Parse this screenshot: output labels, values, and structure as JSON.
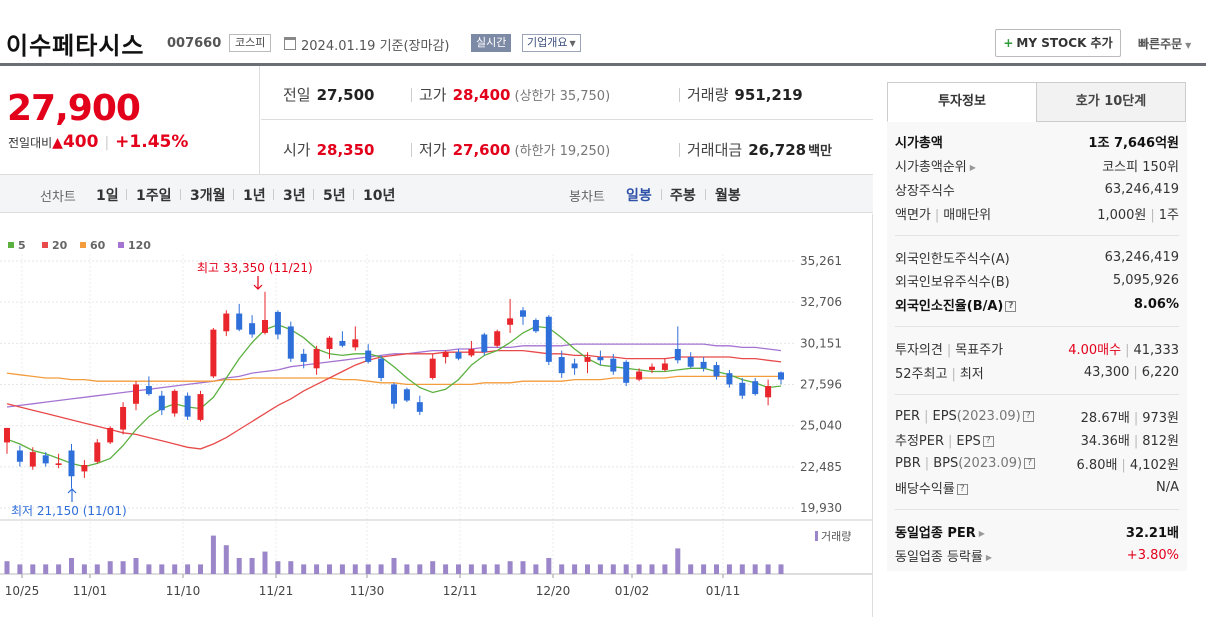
{
  "header": {
    "stock_name": "이수페타시스",
    "stock_code": "007660",
    "market": "코스피",
    "date_text": "2024.01.19 기준(장마감)",
    "realtime_label": "실시간",
    "company_info_label": "기업개요",
    "mystock_label": "MY STOCK 추가",
    "quick_order_label": "빠른주문"
  },
  "price": {
    "current": "27,900",
    "change_label": "전일대비",
    "change_amount": "400",
    "change_pct": "+1.45%",
    "prev_close_label": "전일",
    "prev_close": "27,500",
    "high_label": "고가",
    "high": "28,400",
    "upper_limit_text": "(상한가 35,750)",
    "volume_label": "거래량",
    "volume": "951,219",
    "open_label": "시가",
    "open": "28,350",
    "low_label": "저가",
    "low": "27,600",
    "lower_limit_text": "(하한가 19,250)",
    "amount_label": "거래대금",
    "amount": "26,728",
    "amount_unit": "백만"
  },
  "toolbar": {
    "line_chart_label": "선차트",
    "line_periods": [
      "1일",
      "1주일",
      "3개월",
      "1년",
      "3년",
      "5년",
      "10년"
    ],
    "candle_chart_label": "봉차트",
    "candle_periods": [
      "일봉",
      "주봉",
      "월봉"
    ],
    "active_candle": "일봉"
  },
  "chart_data": {
    "type": "candlestick",
    "legend": [
      {
        "name": "5",
        "color": "#5cb040"
      },
      {
        "name": "20",
        "color": "#e84a4a"
      },
      {
        "name": "60",
        "color": "#f39c3c"
      },
      {
        "name": "120",
        "color": "#a574d2"
      }
    ],
    "y_ticks": [
      "35,261",
      "32,706",
      "30,151",
      "27,596",
      "25,040",
      "22,485",
      "19,930"
    ],
    "ylim": [
      19930,
      35261
    ],
    "x_ticks": [
      "10/25",
      "11/01",
      "11/10",
      "11/21",
      "11/30",
      "12/11",
      "12/20",
      "01/02",
      "01/11"
    ],
    "max_annotation": "최고 33,350 (11/21)",
    "min_annotation": "최저 21,150 (11/01)",
    "volume_label": "거래량",
    "up_color": "#e8262b",
    "down_color": "#2f6fd9",
    "volume_color": "#9b86c9",
    "candles": [
      {
        "o": 24000,
        "h": 24900,
        "l": 23300,
        "c": 24900
      },
      {
        "o": 23500,
        "h": 23800,
        "l": 22500,
        "c": 22800
      },
      {
        "o": 22500,
        "h": 23700,
        "l": 22300,
        "c": 23400
      },
      {
        "o": 23200,
        "h": 23400,
        "l": 22500,
        "c": 22700
      },
      {
        "o": 22600,
        "h": 23300,
        "l": 22400,
        "c": 22700
      },
      {
        "o": 23500,
        "h": 23900,
        "l": 21150,
        "c": 21900
      },
      {
        "o": 22200,
        "h": 22900,
        "l": 21800,
        "c": 22600
      },
      {
        "o": 22800,
        "h": 24200,
        "l": 22700,
        "c": 24000
      },
      {
        "o": 24000,
        "h": 25000,
        "l": 23900,
        "c": 24900
      },
      {
        "o": 24800,
        "h": 26500,
        "l": 24500,
        "c": 26200
      },
      {
        "o": 26400,
        "h": 27800,
        "l": 26000,
        "c": 27600
      },
      {
        "o": 27500,
        "h": 28100,
        "l": 26900,
        "c": 27000
      },
      {
        "o": 26900,
        "h": 27200,
        "l": 25700,
        "c": 26000
      },
      {
        "o": 25800,
        "h": 27300,
        "l": 25600,
        "c": 27200
      },
      {
        "o": 26900,
        "h": 27100,
        "l": 25400,
        "c": 25600
      },
      {
        "o": 25400,
        "h": 27200,
        "l": 25300,
        "c": 27000
      },
      {
        "o": 28100,
        "h": 31100,
        "l": 28000,
        "c": 31000
      },
      {
        "o": 30900,
        "h": 32200,
        "l": 30600,
        "c": 32000
      },
      {
        "o": 32000,
        "h": 32600,
        "l": 30900,
        "c": 31000
      },
      {
        "o": 31400,
        "h": 31900,
        "l": 30500,
        "c": 30700
      },
      {
        "o": 30800,
        "h": 33350,
        "l": 30700,
        "c": 31600
      },
      {
        "o": 32100,
        "h": 32200,
        "l": 30400,
        "c": 30700
      },
      {
        "o": 31200,
        "h": 31500,
        "l": 29000,
        "c": 29200
      },
      {
        "o": 29500,
        "h": 29800,
        "l": 28600,
        "c": 29000
      },
      {
        "o": 28600,
        "h": 30000,
        "l": 28200,
        "c": 29800
      },
      {
        "o": 29800,
        "h": 30600,
        "l": 29200,
        "c": 30500
      },
      {
        "o": 30300,
        "h": 30900,
        "l": 29900,
        "c": 30000
      },
      {
        "o": 29900,
        "h": 31200,
        "l": 29700,
        "c": 30400
      },
      {
        "o": 29700,
        "h": 30100,
        "l": 28900,
        "c": 29000
      },
      {
        "o": 29200,
        "h": 29400,
        "l": 27800,
        "c": 28000
      },
      {
        "o": 27600,
        "h": 27700,
        "l": 26100,
        "c": 26400
      },
      {
        "o": 27300,
        "h": 27400,
        "l": 26500,
        "c": 26600
      },
      {
        "o": 26500,
        "h": 26900,
        "l": 25700,
        "c": 25900
      },
      {
        "o": 28000,
        "h": 29500,
        "l": 27900,
        "c": 29200
      },
      {
        "o": 29300,
        "h": 29700,
        "l": 28900,
        "c": 29600
      },
      {
        "o": 29600,
        "h": 29800,
        "l": 29100,
        "c": 29200
      },
      {
        "o": 29400,
        "h": 30300,
        "l": 29300,
        "c": 29800
      },
      {
        "o": 30700,
        "h": 30800,
        "l": 29400,
        "c": 29600
      },
      {
        "o": 30000,
        "h": 31000,
        "l": 29900,
        "c": 30900
      },
      {
        "o": 31300,
        "h": 32900,
        "l": 30800,
        "c": 31700
      },
      {
        "o": 32200,
        "h": 32400,
        "l": 31300,
        "c": 31800
      },
      {
        "o": 31600,
        "h": 31700,
        "l": 30800,
        "c": 30900
      },
      {
        "o": 31800,
        "h": 31900,
        "l": 28800,
        "c": 29000
      },
      {
        "o": 29300,
        "h": 29700,
        "l": 28000,
        "c": 28300
      },
      {
        "o": 28900,
        "h": 29200,
        "l": 28200,
        "c": 28600
      },
      {
        "o": 29000,
        "h": 29600,
        "l": 28300,
        "c": 29300
      },
      {
        "o": 29300,
        "h": 29700,
        "l": 28800,
        "c": 29100
      },
      {
        "o": 29200,
        "h": 29500,
        "l": 28200,
        "c": 28400
      },
      {
        "o": 29000,
        "h": 29100,
        "l": 27500,
        "c": 27700
      },
      {
        "o": 27900,
        "h": 28600,
        "l": 27800,
        "c": 28400
      },
      {
        "o": 28500,
        "h": 28900,
        "l": 28300,
        "c": 28700
      },
      {
        "o": 28500,
        "h": 29200,
        "l": 28400,
        "c": 28900
      },
      {
        "o": 29800,
        "h": 31200,
        "l": 28900,
        "c": 29100
      },
      {
        "o": 29300,
        "h": 29600,
        "l": 28600,
        "c": 28700
      },
      {
        "o": 29000,
        "h": 29300,
        "l": 28400,
        "c": 28600
      },
      {
        "o": 28800,
        "h": 29000,
        "l": 27900,
        "c": 28100
      },
      {
        "o": 28300,
        "h": 28500,
        "l": 27400,
        "c": 27600
      },
      {
        "o": 27700,
        "h": 28000,
        "l": 26700,
        "c": 26900
      },
      {
        "o": 27800,
        "h": 28000,
        "l": 26900,
        "c": 27000
      },
      {
        "o": 26800,
        "h": 27900,
        "l": 26300,
        "c": 27500
      },
      {
        "o": 28350,
        "h": 28400,
        "l": 27600,
        "c": 27900
      }
    ],
    "volume_levels": [
      4,
      3,
      3,
      3,
      3,
      5,
      3,
      3,
      4,
      4,
      5,
      3,
      3,
      3,
      3,
      3,
      12,
      9,
      5,
      5,
      7,
      4,
      4,
      3,
      3,
      3,
      3,
      3,
      3,
      3,
      5,
      3,
      3,
      4,
      3,
      3,
      3,
      3,
      3,
      4,
      4,
      3,
      5,
      3,
      3,
      3,
      3,
      3,
      3,
      3,
      3,
      3,
      8,
      3,
      3,
      3,
      3,
      3,
      3,
      3,
      3
    ],
    "ma5": [
      24200,
      23900,
      23500,
      23300,
      23000,
      22700,
      22500,
      22700,
      23000,
      23800,
      24800,
      25600,
      26100,
      26400,
      26200,
      26100,
      26800,
      28000,
      29200,
      30200,
      31000,
      31300,
      31000,
      30500,
      29800,
      29500,
      29400,
      29500,
      29500,
      29300,
      28700,
      28000,
      27400,
      27100,
      27300,
      27900,
      28800,
      29400,
      29700,
      30200,
      30800,
      31200,
      31100,
      30500,
      29800,
      29200,
      28800,
      28700,
      28600,
      28500,
      28400,
      28400,
      28500,
      28600,
      28600,
      28400,
      28200,
      27900,
      27700,
      27400,
      27500
    ],
    "ma20": [
      26400,
      26200,
      26000,
      25800,
      25600,
      25400,
      25200,
      25000,
      24800,
      24600,
      24500,
      24300,
      24100,
      23900,
      23700,
      23600,
      23900,
      24300,
      24800,
      25300,
      25800,
      26300,
      26700,
      27200,
      27600,
      28000,
      28400,
      28800,
      29100,
      29300,
      29400,
      29500,
      29500,
      29500,
      29600,
      29600,
      29600,
      29600,
      29700,
      29700,
      29700,
      29600,
      29500,
      29500,
      29400,
      29400,
      29300,
      29300,
      29200,
      29200,
      29200,
      29200,
      29300,
      29300,
      29300,
      29300,
      29300,
      29200,
      29200,
      29100,
      29000
    ],
    "ma60": [
      28300,
      28200,
      28100,
      28000,
      28000,
      27900,
      27900,
      27800,
      27800,
      27800,
      27800,
      27800,
      27800,
      27800,
      27800,
      27800,
      27800,
      27900,
      27900,
      28000,
      28000,
      28000,
      28000,
      28000,
      28000,
      28000,
      27900,
      27900,
      27800,
      27700,
      27700,
      27600,
      27600,
      27600,
      27600,
      27600,
      27600,
      27700,
      27700,
      27700,
      27800,
      27800,
      27800,
      27800,
      27900,
      27900,
      27900,
      28000,
      28000,
      28000,
      28000,
      28000,
      28100,
      28100,
      28100,
      28100,
      28100,
      28100,
      28100,
      28100,
      28100
    ],
    "ma120": [
      26200,
      26300,
      26400,
      26500,
      26600,
      26700,
      26800,
      26900,
      27000,
      27100,
      27200,
      27300,
      27400,
      27500,
      27600,
      27700,
      27800,
      28000,
      28100,
      28300,
      28400,
      28500,
      28700,
      28800,
      28900,
      29000,
      29100,
      29200,
      29300,
      29400,
      29500,
      29500,
      29600,
      29700,
      29700,
      29800,
      29800,
      29900,
      29900,
      29900,
      30000,
      30000,
      30000,
      30000,
      30100,
      30100,
      30100,
      30100,
      30100,
      30100,
      30100,
      30100,
      30100,
      30100,
      30100,
      30000,
      30000,
      29900,
      29900,
      29800,
      29700
    ]
  },
  "right_panel": {
    "tab_active": "투자정보",
    "tab_inactive": "호가 10단계",
    "rows": {
      "mcap_label": "시가총액",
      "mcap_value": "1조 7,646억원",
      "mcap_rank_label": "시가총액순위",
      "mcap_rank_value": "코스피 150위",
      "shares_label": "상장주식수",
      "shares_value": "63,246,419",
      "par_label": "액면가",
      "trade_unit_label": "매매단위",
      "par_value": "1,000원",
      "trade_unit_value": "1주",
      "foreign_limit_label": "외국인한도주식수(A)",
      "foreign_limit_value": "63,246,419",
      "foreign_hold_label": "외국인보유주식수(B)",
      "foreign_hold_value": "5,095,926",
      "foreign_ratio_label": "외국인소진율(B/A)",
      "foreign_ratio_value": "8.06%",
      "opinion_label": "투자의견",
      "target_label": "목표주가",
      "opinion_value": "4.00매수",
      "target_value": "41,333",
      "w52_high_label": "52주최고",
      "w52_low_label": "최저",
      "w52_high_value": "43,300",
      "w52_low_value": "6,220",
      "per_label": "PER",
      "eps_label": "EPS",
      "per_year": "(2023.09)",
      "per_value": "28.67배",
      "eps_value": "973원",
      "est_per_label": "추정PER",
      "est_eps_label": "EPS",
      "est_per_value": "34.36배",
      "est_eps_value": "812원",
      "pbr_label": "PBR",
      "bps_label": "BPS",
      "pbr_year": "(2023.09)",
      "pbr_value": "6.80배",
      "bps_value": "4,102원",
      "dividend_label": "배당수익률",
      "dividend_value": "N/A",
      "sector_per_label": "동일업종 PER",
      "sector_per_value": "32.21배",
      "sector_change_label": "동일업종 등락률",
      "sector_change_value": "+3.80%"
    }
  }
}
